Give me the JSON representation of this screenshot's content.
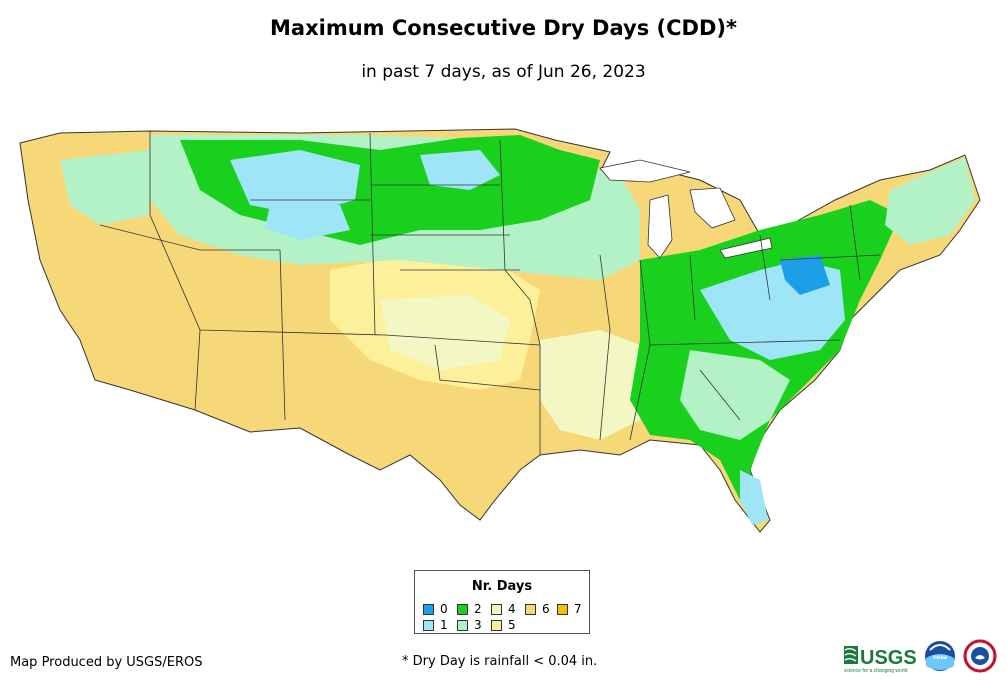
{
  "title": "Maximum Consecutive Dry Days (CDD)*",
  "subtitle": "in past 7 days, as of Jun 26, 2023",
  "legend": {
    "title": "Nr. Days",
    "items": [
      {
        "label": "0",
        "color": "#1a9fe8"
      },
      {
        "label": "1",
        "color": "#9ee6f7"
      },
      {
        "label": "2",
        "color": "#19d11c"
      },
      {
        "label": "3",
        "color": "#b3f2c6"
      },
      {
        "label": "4",
        "color": "#f3f7c4"
      },
      {
        "label": "5",
        "color": "#fdf09a"
      },
      {
        "label": "6",
        "color": "#f7d879"
      },
      {
        "label": "7",
        "color": "#f5c000"
      }
    ]
  },
  "credit": "Map Produced by USGS/EROS",
  "footnote": "* Dry Day is rainfall < 0.04 in.",
  "logos": {
    "usgs": "USGS",
    "usgs_tagline": "science for a changing world",
    "noaa": "noaa"
  }
}
